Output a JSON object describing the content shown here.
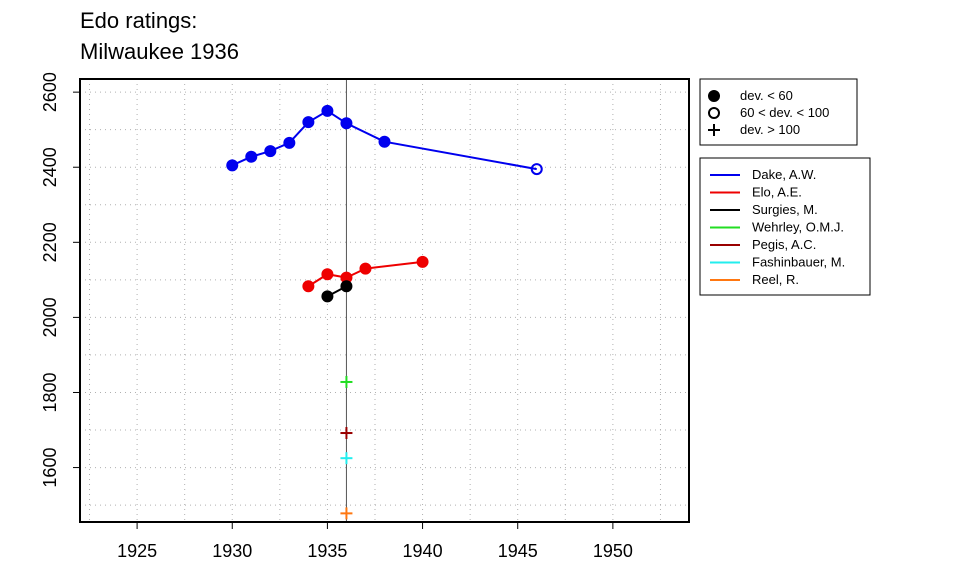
{
  "chart_data": {
    "type": "line",
    "title_line1": "Edo ratings:",
    "title_line2": "Milwaukee 1936",
    "xlabel": "",
    "ylabel": "",
    "xlim": [
      1922,
      1954
    ],
    "ylim": [
      1455,
      2635
    ],
    "x_ticks": [
      1925,
      1930,
      1935,
      1940,
      1945,
      1950
    ],
    "y_ticks": [
      1600,
      1800,
      2000,
      2200,
      2400,
      2600
    ],
    "grid": true,
    "reference_line_x": 1936,
    "marker_legend": [
      {
        "marker": "filled",
        "label": "dev. < 60"
      },
      {
        "marker": "open",
        "label": "60 < dev. < 100"
      },
      {
        "marker": "plus",
        "label": "dev. > 100"
      }
    ],
    "series": [
      {
        "name": "Dake, A.W.",
        "color": "#0000ee",
        "points": [
          {
            "x": 1930,
            "y": 2405,
            "m": "filled"
          },
          {
            "x": 1931,
            "y": 2428,
            "m": "filled"
          },
          {
            "x": 1932,
            "y": 2443,
            "m": "filled"
          },
          {
            "x": 1933,
            "y": 2465,
            "m": "filled"
          },
          {
            "x": 1934,
            "y": 2520,
            "m": "filled"
          },
          {
            "x": 1935,
            "y": 2550,
            "m": "filled"
          },
          {
            "x": 1936,
            "y": 2517,
            "m": "filled"
          },
          {
            "x": 1938,
            "y": 2468,
            "m": "filled"
          },
          {
            "x": 1946,
            "y": 2395,
            "m": "open"
          }
        ]
      },
      {
        "name": "Elo, A.E.",
        "color": "#ee0000",
        "points": [
          {
            "x": 1934,
            "y": 2083,
            "m": "filled"
          },
          {
            "x": 1935,
            "y": 2115,
            "m": "filled"
          },
          {
            "x": 1936,
            "y": 2106,
            "m": "filled"
          },
          {
            "x": 1937,
            "y": 2130,
            "m": "filled"
          },
          {
            "x": 1940,
            "y": 2148,
            "m": "filled"
          }
        ]
      },
      {
        "name": "Surgies, M.",
        "color": "#000000",
        "points": [
          {
            "x": 1935,
            "y": 2056,
            "m": "filled"
          },
          {
            "x": 1936,
            "y": 2083,
            "m": "filled"
          }
        ]
      },
      {
        "name": "Wehrley, O.M.J.",
        "color": "#22dd22",
        "points": [
          {
            "x": 1936,
            "y": 1828,
            "m": "plus"
          }
        ]
      },
      {
        "name": "Pegis, A.C.",
        "color": "#990000",
        "points": [
          {
            "x": 1936,
            "y": 1692,
            "m": "plus"
          }
        ]
      },
      {
        "name": "Fashinbauer, M.",
        "color": "#22eeee",
        "points": [
          {
            "x": 1936,
            "y": 1625,
            "m": "plus"
          }
        ]
      },
      {
        "name": "Reel, R.",
        "color": "#ff7711",
        "points": [
          {
            "x": 1936,
            "y": 1478,
            "m": "plus"
          }
        ]
      }
    ]
  }
}
